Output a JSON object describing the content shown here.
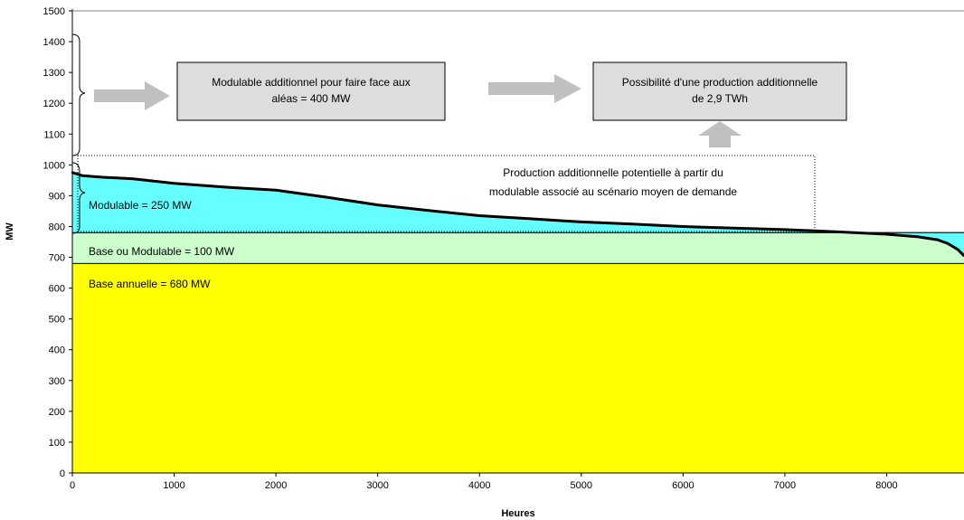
{
  "chart_data": {
    "type": "area",
    "title": "",
    "xlabel": "Heures",
    "ylabel": "MW",
    "xlim": [
      0,
      8760
    ],
    "ylim": [
      0,
      1500
    ],
    "x_ticks": [
      0,
      1000,
      2000,
      3000,
      4000,
      5000,
      6000,
      7000,
      8000
    ],
    "x_tick_labels": [
      "0",
      "1000",
      "2000",
      "3000",
      "4000",
      "5000",
      "6000",
      "7000",
      "8000"
    ],
    "y_ticks": [
      0,
      100,
      200,
      300,
      400,
      500,
      600,
      700,
      800,
      900,
      1000,
      1100,
      1200,
      1300,
      1400,
      1500
    ],
    "y_tick_labels": [
      "0",
      "100",
      "200",
      "300",
      "400",
      "500",
      "600",
      "700",
      "800",
      "900",
      "1000",
      "1100",
      "1200",
      "1300",
      "1400",
      "1500"
    ],
    "bands": [
      {
        "label": "Base annuelle = 680 MW",
        "from": 0,
        "to": 680,
        "color": "#ffff00"
      },
      {
        "label": "Base ou Modulable = 100 MW",
        "from": 680,
        "to": 780,
        "color": "#ccffcc"
      },
      {
        "label": "Modulable = 250 MW",
        "from": 780,
        "to": "curve",
        "color": "#66ffff"
      }
    ],
    "series": [
      {
        "x": [
          0,
          100,
          300,
          600,
          1000,
          1500,
          2000,
          2500,
          3000,
          3500,
          4000,
          4500,
          5000,
          5500,
          6000,
          6500,
          7000,
          7500,
          8000,
          8300,
          8500,
          8600,
          8700,
          8760
        ],
        "y": [
          975,
          965,
          960,
          955,
          940,
          928,
          918,
          895,
          870,
          852,
          835,
          825,
          815,
          808,
          800,
          795,
          790,
          783,
          775,
          767,
          757,
          745,
          725,
          705
        ]
      }
    ],
    "annotations": [
      {
        "id": "box1",
        "text": [
          "Modulable additionnel pour faire face aux",
          "aléas = 400 MW"
        ],
        "fill": "#dddddd"
      },
      {
        "id": "box2",
        "text": [
          "Possibilité d'une production additionnelle",
          "de 2,9 TWh"
        ],
        "fill": "#dddddd"
      },
      {
        "id": "dotted",
        "text": [
          "Production additionnelle potentielle à partir du",
          "modulable associé au scénario moyen de demande"
        ]
      }
    ],
    "colors": {
      "base": "#ffff00",
      "base_mod": "#ccffcc",
      "modulable": "#66ffff",
      "curve": "#000000",
      "arrow": "#c0c0c0",
      "box": "#dddddd"
    },
    "grid": false,
    "legend": "none"
  }
}
